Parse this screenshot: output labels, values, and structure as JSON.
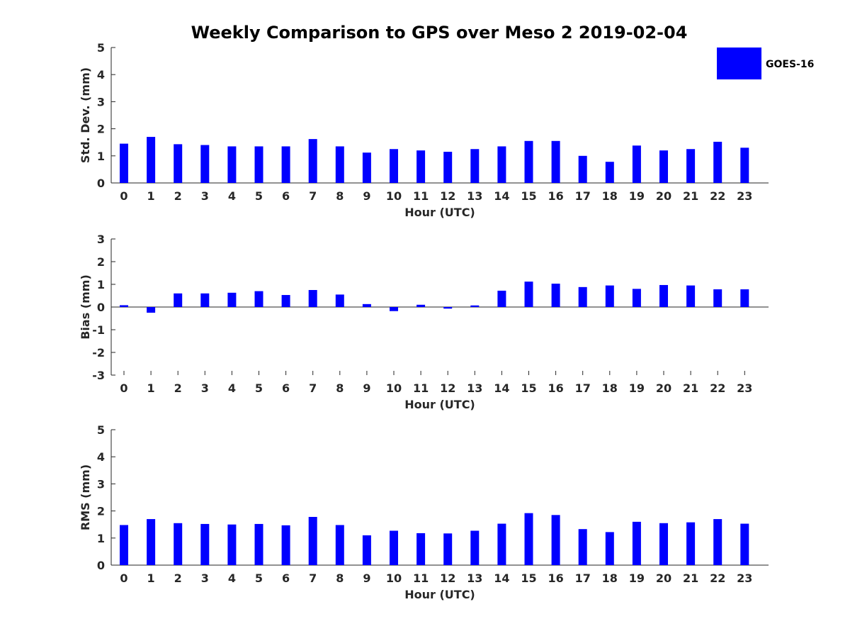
{
  "title": "Weekly Comparison to GPS over Meso 2 2019-02-04",
  "bar_color": "#0000ff",
  "legend": {
    "label": "GOES-16"
  },
  "chart_data": [
    {
      "type": "bar",
      "title": "Weekly Comparison to GPS over Meso 2 2019-02-04",
      "xlabel": "Hour (UTC)",
      "ylabel": "Std. Dev. (mm)",
      "ylim": [
        0,
        5
      ],
      "yticks": [
        "0",
        "1",
        "2",
        "3",
        "4",
        "5"
      ],
      "categories": [
        "0",
        "1",
        "2",
        "3",
        "4",
        "5",
        "6",
        "7",
        "8",
        "9",
        "10",
        "11",
        "12",
        "13",
        "14",
        "15",
        "16",
        "17",
        "18",
        "19",
        "20",
        "21",
        "22",
        "23"
      ],
      "series": [
        {
          "name": "GOES-16",
          "values": [
            1.45,
            1.7,
            1.43,
            1.4,
            1.35,
            1.35,
            1.35,
            1.62,
            1.35,
            1.12,
            1.25,
            1.2,
            1.15,
            1.25,
            1.35,
            1.55,
            1.55,
            1.0,
            0.78,
            1.38,
            1.2,
            1.25,
            1.52,
            1.3
          ]
        }
      ]
    },
    {
      "type": "bar",
      "xlabel": "Hour (UTC)",
      "ylabel": "Bias (mm)",
      "ylim": [
        -3,
        3
      ],
      "yticks": [
        "-3",
        "-2",
        "-1",
        "0",
        "1",
        "2",
        "3"
      ],
      "categories": [
        "0",
        "1",
        "2",
        "3",
        "4",
        "5",
        "6",
        "7",
        "8",
        "9",
        "10",
        "11",
        "12",
        "13",
        "14",
        "15",
        "16",
        "17",
        "18",
        "19",
        "20",
        "21",
        "22",
        "23"
      ],
      "series": [
        {
          "name": "GOES-16",
          "values": [
            0.08,
            -0.25,
            0.6,
            0.6,
            0.63,
            0.7,
            0.53,
            0.75,
            0.55,
            0.13,
            -0.18,
            0.1,
            -0.07,
            0.07,
            0.72,
            1.12,
            1.03,
            0.88,
            0.95,
            0.8,
            0.97,
            0.95,
            0.78,
            0.78
          ]
        }
      ]
    },
    {
      "type": "bar",
      "xlabel": "Hour (UTC)",
      "ylabel": "RMS (mm)",
      "ylim": [
        0,
        5
      ],
      "yticks": [
        "0",
        "1",
        "2",
        "3",
        "4",
        "5"
      ],
      "categories": [
        "0",
        "1",
        "2",
        "3",
        "4",
        "5",
        "6",
        "7",
        "8",
        "9",
        "10",
        "11",
        "12",
        "13",
        "14",
        "15",
        "16",
        "17",
        "18",
        "19",
        "20",
        "21",
        "22",
        "23"
      ],
      "series": [
        {
          "name": "GOES-16",
          "values": [
            1.48,
            1.7,
            1.55,
            1.52,
            1.5,
            1.52,
            1.47,
            1.78,
            1.48,
            1.1,
            1.27,
            1.18,
            1.17,
            1.27,
            1.53,
            1.92,
            1.85,
            1.33,
            1.22,
            1.6,
            1.55,
            1.58,
            1.7,
            1.53
          ]
        }
      ]
    }
  ]
}
